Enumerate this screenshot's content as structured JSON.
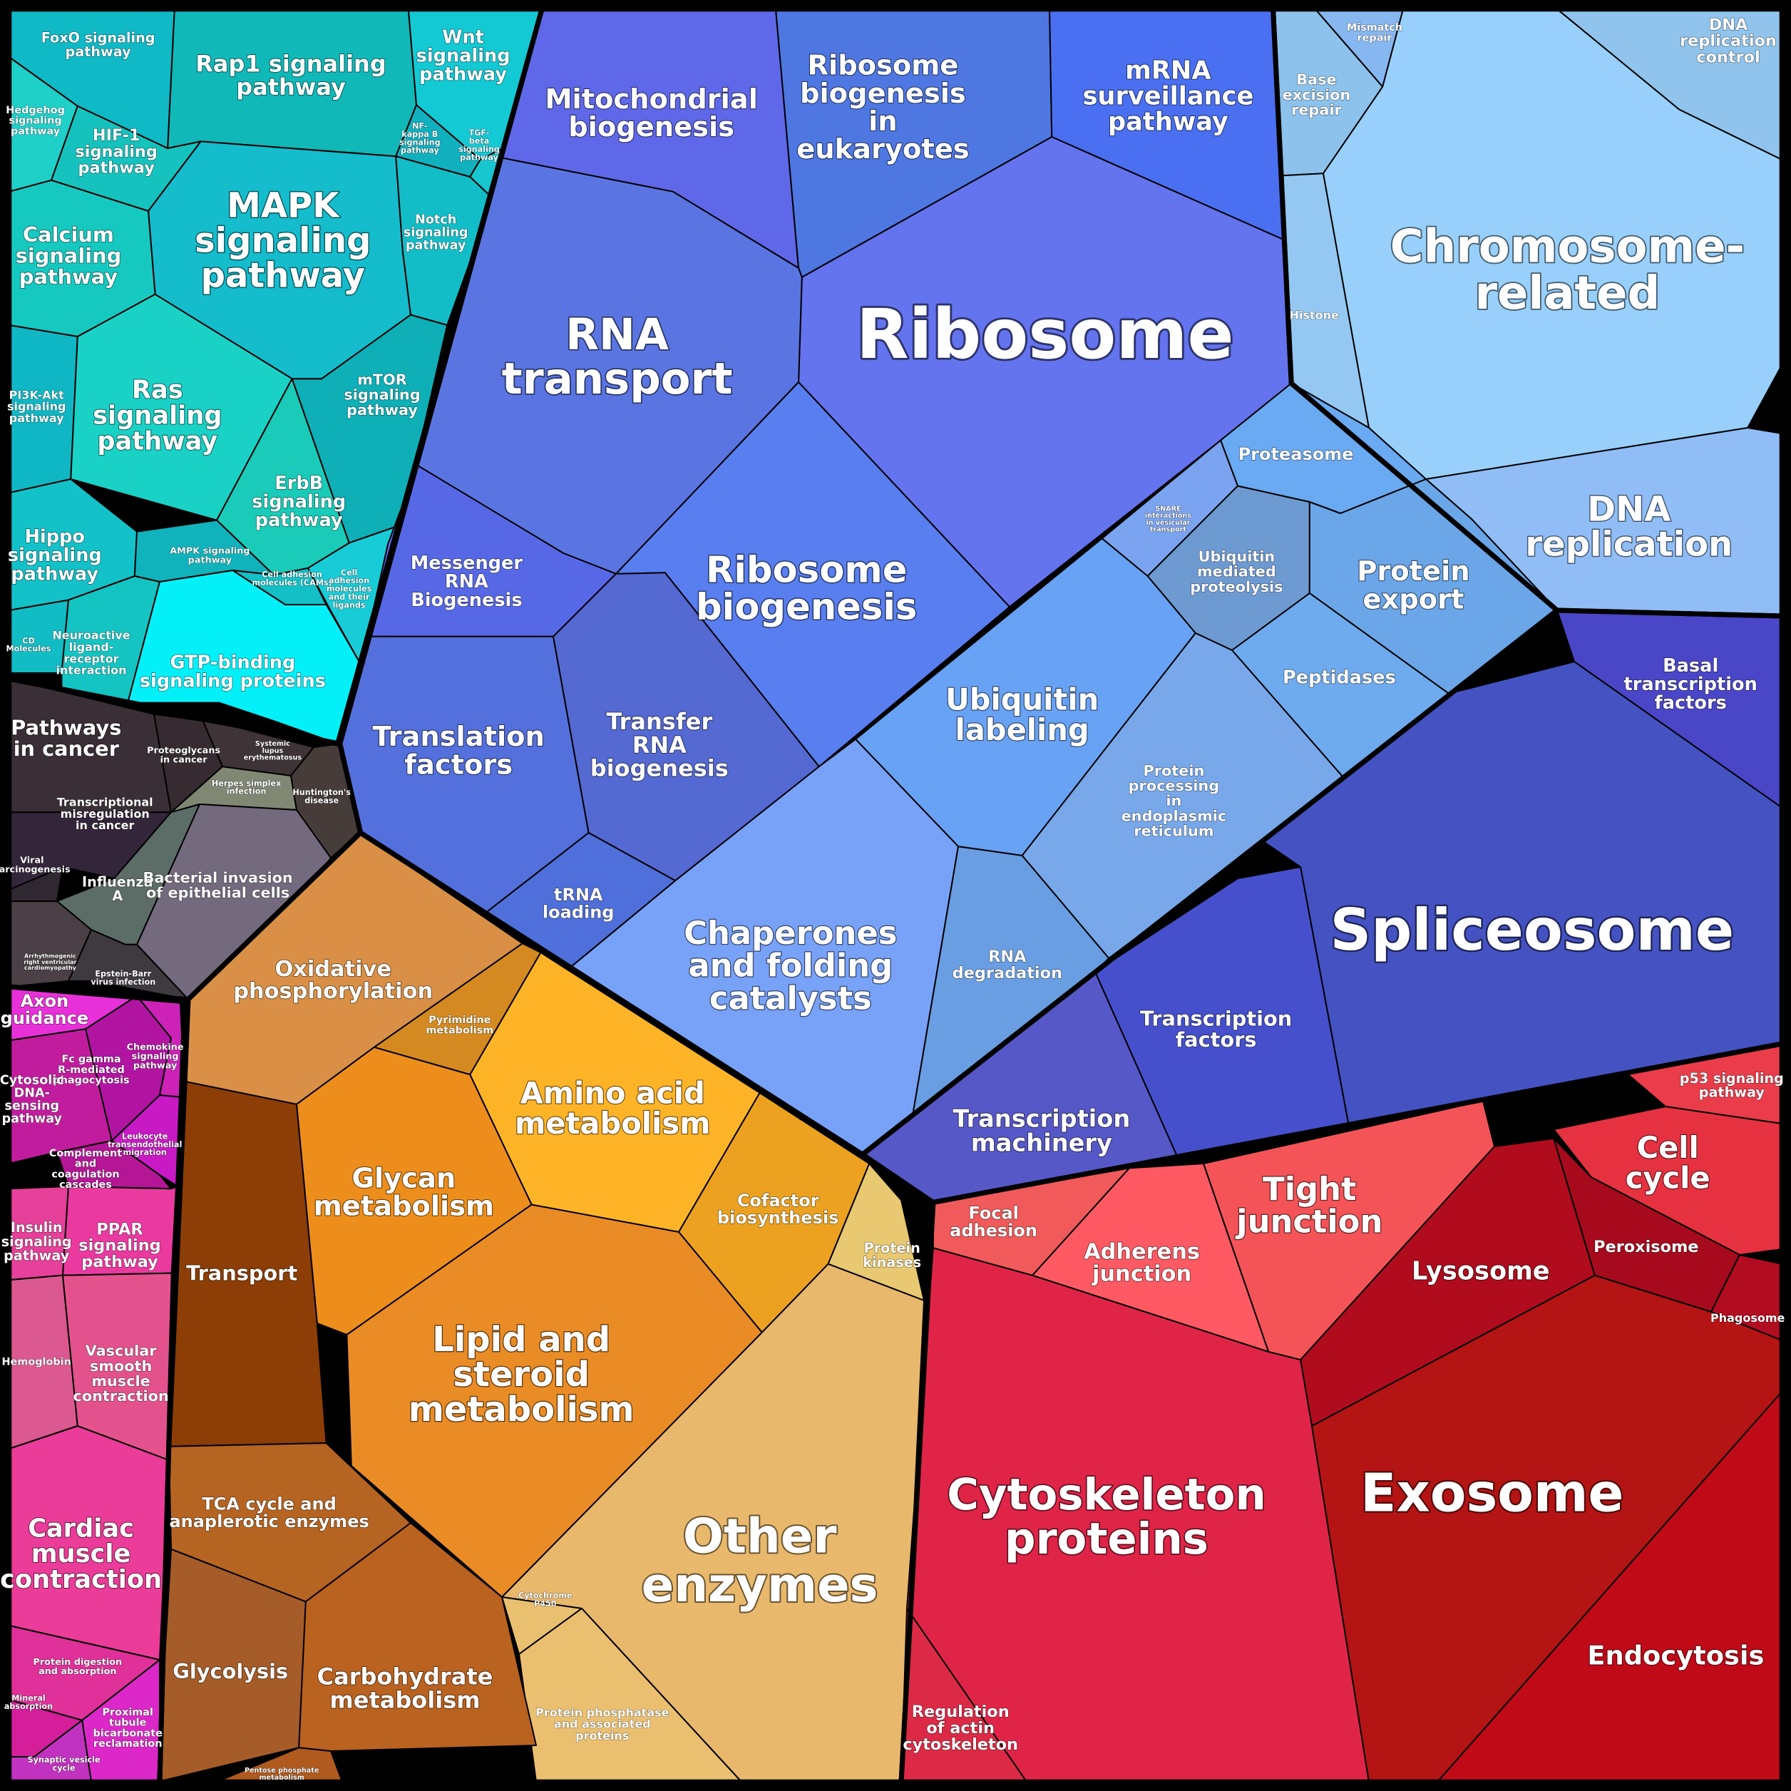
{
  "colors": {
    "signaling": "#16c7cf",
    "genetic": "#5f7ae6",
    "chromosome": "#8ec8f5",
    "folding": "#6a9ef0",
    "transcription": "#4548c4",
    "disease": "#3b3238",
    "systems": "#e63bc8",
    "organismal": "#e24b90",
    "metabolism": "#e8962e",
    "carbohydrate": "#b5651d",
    "cellular": "#d7233e"
  },
  "cells": [
    {
      "id": "foxo",
      "name": "FoxO signaling pathway",
      "color": "#0fb9c6"
    },
    {
      "id": "rap1",
      "name": "Rap1 signaling pathway",
      "color": "#11b8b8"
    },
    {
      "id": "wnt",
      "name": "Wnt signaling pathway",
      "color": "#13c9d4"
    },
    {
      "id": "hedgehog",
      "name": "Hedgehog signaling pathway",
      "color": "#1fd0c9"
    },
    {
      "id": "hif1",
      "name": "HIF-1 signaling pathway",
      "color": "#16c2bd"
    },
    {
      "id": "mapk",
      "name": "MAPK signaling pathway",
      "color": "#14bccc"
    },
    {
      "id": "nfkb",
      "name": "NF-kappa B signaling pathway",
      "color": "#10b0bf"
    },
    {
      "id": "tgf",
      "name": "TGF-beta signaling pathway",
      "color": "#18c6d0"
    },
    {
      "id": "notch",
      "name": "Notch signaling pathway",
      "color": "#12bdc7"
    },
    {
      "id": "calcium",
      "name": "Calcium signaling pathway",
      "color": "#16c9c0"
    },
    {
      "id": "pi3k",
      "name": "PI3K-Akt signaling pathway",
      "color": "#0fb7c4"
    },
    {
      "id": "ras",
      "name": "Ras signaling pathway",
      "color": "#1ad1c6"
    },
    {
      "id": "mtor",
      "name": "mTOR signaling pathway",
      "color": "#0eafb7"
    },
    {
      "id": "erbb",
      "name": "ErbB signaling pathway",
      "color": "#19cbb8"
    },
    {
      "id": "hippo",
      "name": "Hippo signaling pathway",
      "color": "#13c2c8"
    },
    {
      "id": "ampk",
      "name": "AMPK signaling pathway",
      "color": "#10b3bb"
    },
    {
      "id": "cam",
      "name": "Cell adhesion molecules (CAMs)",
      "color": "#12c0c6"
    },
    {
      "id": "cellAdh",
      "name": "Cell adhesion molecules and their ligands",
      "color": "#17ccd6"
    },
    {
      "id": "cd",
      "name": "CD Molecules",
      "color": "#11bcc4"
    },
    {
      "id": "neuro",
      "name": "Neuroactive ligand-receptor interaction",
      "color": "#14c4c2"
    },
    {
      "id": "gtp",
      "name": "GTP-binding signaling proteins",
      "color": "#04f0f8"
    },
    {
      "id": "mito",
      "name": "Mitochondrial biogenesis",
      "color": "#5f68e8"
    },
    {
      "id": "ribEuk",
      "name": "Ribosome biogenesis in eukaryotes",
      "color": "#4f77e2"
    },
    {
      "id": "mrna",
      "name": "mRNA surveillance pathway",
      "color": "#4a6ff0"
    },
    {
      "id": "ribosome",
      "name": "Ribosome",
      "color": "#6473ee"
    },
    {
      "id": "rnaTransport",
      "name": "RNA transport",
      "color": "#5a75e2"
    },
    {
      "id": "messenger",
      "name": "Messenger RNA Biogenesis",
      "color": "#5768e6"
    },
    {
      "id": "ribBio",
      "name": "Ribosome biogenesis",
      "color": "#587ef0"
    },
    {
      "id": "translation",
      "name": "Translation factors",
      "color": "#5470dc"
    },
    {
      "id": "transferRna",
      "name": "Transfer RNA biogenesis",
      "color": "#5569d2"
    },
    {
      "id": "trna",
      "name": "tRNA loading",
      "color": "#4f70da"
    },
    {
      "id": "base",
      "name": "Base excision repair",
      "color": "#8cc2ec"
    },
    {
      "id": "mismatch",
      "name": "Mismatch repair",
      "color": "#86b7f0"
    },
    {
      "id": "dnaControl",
      "name": "DNA replication control",
      "color": "#90c4ec"
    },
    {
      "id": "histone",
      "name": "Histone",
      "color": "#94c8f2"
    },
    {
      "id": "chromosome",
      "name": "Chromosome-related",
      "color": "#98d0fb"
    },
    {
      "id": "dnaRep",
      "name": "DNA replication",
      "color": "#90bdf6"
    },
    {
      "id": "proteasome",
      "name": "Proteasome",
      "color": "#6aaaf2"
    },
    {
      "id": "snare",
      "name": "SNARE interactions in vesicular transport",
      "color": "#7aa4f0"
    },
    {
      "id": "ubiMed",
      "name": "Ubiquitin mediated proteolysis",
      "color": "#6e9ad2"
    },
    {
      "id": "protExport",
      "name": "Protein export",
      "color": "#6aa6e8"
    },
    {
      "id": "peptidases",
      "name": "Peptidases",
      "color": "#6eaaee"
    },
    {
      "id": "ubiLabel",
      "name": "Ubiquitin labeling",
      "color": "#68a2f4"
    },
    {
      "id": "protProc",
      "name": "Protein processing in endoplasmic reticulum",
      "color": "#78a8ea"
    },
    {
      "id": "chaperones",
      "name": "Chaperones and folding catalysts",
      "color": "#78a2f8"
    },
    {
      "id": "rnaDeg",
      "name": "RNA degradation",
      "color": "#6a9ee2"
    },
    {
      "id": "basal",
      "name": "Basal transcription factors",
      "color": "#4a46c8"
    },
    {
      "id": "spliceosome",
      "name": "Spliceosome",
      "color": "#4452c2"
    },
    {
      "id": "tfactors",
      "name": "Transcription factors",
      "color": "#4650cc"
    },
    {
      "id": "tmachinery",
      "name": "Transcription machinery",
      "color": "#5758c8"
    },
    {
      "id": "pathCancer",
      "name": "Pathways in cancer",
      "color": "#3a2f36"
    },
    {
      "id": "proteoglycans",
      "name": "Proteoglycans in cancer",
      "color": "#352b30"
    },
    {
      "id": "systemic",
      "name": "Systemic lupus erythematosus",
      "color": "#3e3438"
    },
    {
      "id": "transMis",
      "name": "Transcriptional misregulation in cancer",
      "color": "#34263a"
    },
    {
      "id": "herpes",
      "name": "Herpes simplex infection",
      "color": "#808874"
    },
    {
      "id": "huntington",
      "name": "Huntington's disease",
      "color": "#463c3a"
    },
    {
      "id": "viral",
      "name": "Viral carcinogenesis",
      "color": "#302830"
    },
    {
      "id": "influenza",
      "name": "Influenza A",
      "color": "#5c6c66"
    },
    {
      "id": "bacterial",
      "name": "Bacterial invasion of epithelial cells",
      "color": "#746a7e"
    },
    {
      "id": "arrhythmo",
      "name": "Arrhythmogenic right ventricular cardiomyopathy",
      "color": "#4a4046"
    },
    {
      "id": "epstein",
      "name": "Epstein-Barr virus infection",
      "color": "#3e3a40"
    },
    {
      "id": "axon",
      "name": "Axon guidance",
      "color": "#e830d8"
    },
    {
      "id": "fcgamma",
      "name": "Fc gamma R-mediated phagocytosis",
      "color": "#b214a2"
    },
    {
      "id": "chemokine",
      "name": "Chemokine signaling pathway",
      "color": "#cc22b8"
    },
    {
      "id": "cytosolic",
      "name": "Cytosolic DNA-sensing pathway",
      "color": "#c21c9e"
    },
    {
      "id": "complement",
      "name": "Complement and coagulation cascades",
      "color": "#b41696"
    },
    {
      "id": "leukocyte",
      "name": "Leukocyte transendothelial migration",
      "color": "#c81ac4"
    },
    {
      "id": "insulin",
      "name": "Insulin signaling pathway",
      "color": "#e6409a"
    },
    {
      "id": "ppar",
      "name": "PPAR signaling pathway",
      "color": "#ea3aa0"
    },
    {
      "id": "hemoglobin",
      "name": "Hemoglobin",
      "color": "#dc5890"
    },
    {
      "id": "vascular",
      "name": "Vascular smooth muscle contraction",
      "color": "#e4528e"
    },
    {
      "id": "cardiac",
      "name": "Cardiac muscle contraction",
      "color": "#ea3c98"
    },
    {
      "id": "protDigest",
      "name": "Protein digestion and absorption",
      "color": "#e0309a"
    },
    {
      "id": "mineral",
      "name": "Mineral absorption",
      "color": "#d41e9a"
    },
    {
      "id": "proximal",
      "name": "Proximal tubule bicarbonate reclamation",
      "color": "#dc28c8"
    },
    {
      "id": "synaptic",
      "name": "Synaptic vesicle cycle",
      "color": "#c232c0"
    },
    {
      "id": "oxphos",
      "name": "Oxidative phosphorylation",
      "color": "#d99046"
    },
    {
      "id": "pyrimidine",
      "name": "Pyrimidine metabolism",
      "color": "#d48a20"
    },
    {
      "id": "amino",
      "name": "Amino acid metabolism",
      "color": "#ffb428"
    },
    {
      "id": "glycan",
      "name": "Glycan metabolism",
      "color": "#ed8e1c"
    },
    {
      "id": "cofactor",
      "name": "Cofactor biosynthesis",
      "color": "#eca220"
    },
    {
      "id": "protKin",
      "name": "Protein kinases",
      "color": "#e8c870"
    },
    {
      "id": "lipid",
      "name": "Lipid and steroid metabolism",
      "color": "#ea8c26"
    },
    {
      "id": "other",
      "name": "Other enzymes",
      "color": "#e8b86c"
    },
    {
      "id": "cyp",
      "name": "Cytochrome P450",
      "color": "#e8c070"
    },
    {
      "id": "phosphatase",
      "name": "Protein phosphatase and associated proteins",
      "color": "#eac070"
    },
    {
      "id": "transport",
      "name": "Transport",
      "color": "#8c3e06"
    },
    {
      "id": "tca",
      "name": "TCA cycle and anaplerotic enzymes",
      "color": "#b66422"
    },
    {
      "id": "glycolysis",
      "name": "Glycolysis",
      "color": "#a65c28"
    },
    {
      "id": "carbMet",
      "name": "Carbohydrate metabolism",
      "color": "#ba6220"
    },
    {
      "id": "pentose",
      "name": "Pentose phosphate metabolism",
      "color": "#b05a1e"
    },
    {
      "id": "p53",
      "name": "p53 signaling pathway",
      "color": "#ea3c4a"
    },
    {
      "id": "cellCycle",
      "name": "Cell cycle",
      "color": "#e63240"
    },
    {
      "id": "focal",
      "name": "Focal adhesion",
      "color": "#f05a5a"
    },
    {
      "id": "adherens",
      "name": "Adherens junction",
      "color": "#ff5a64"
    },
    {
      "id": "tight",
      "name": "Tight junction",
      "color": "#f45458"
    },
    {
      "id": "lysosome",
      "name": "Lysosome",
      "color": "#b00c1e"
    },
    {
      "id": "peroxisome",
      "name": "Peroxisome",
      "color": "#a60a1c"
    },
    {
      "id": "phagosome",
      "name": "Phagosome",
      "color": "#b20c20"
    },
    {
      "id": "cytoskeleton",
      "name": "Cytoskeleton proteins",
      "color": "#e02448"
    },
    {
      "id": "exosome",
      "name": "Exosome",
      "color": "#b41414"
    },
    {
      "id": "regActin",
      "name": "Regulation of actin cytoskeleton",
      "color": "#dc2a46"
    },
    {
      "id": "endocytosis",
      "name": "Endocytosis",
      "color": "#c00a18"
    }
  ]
}
